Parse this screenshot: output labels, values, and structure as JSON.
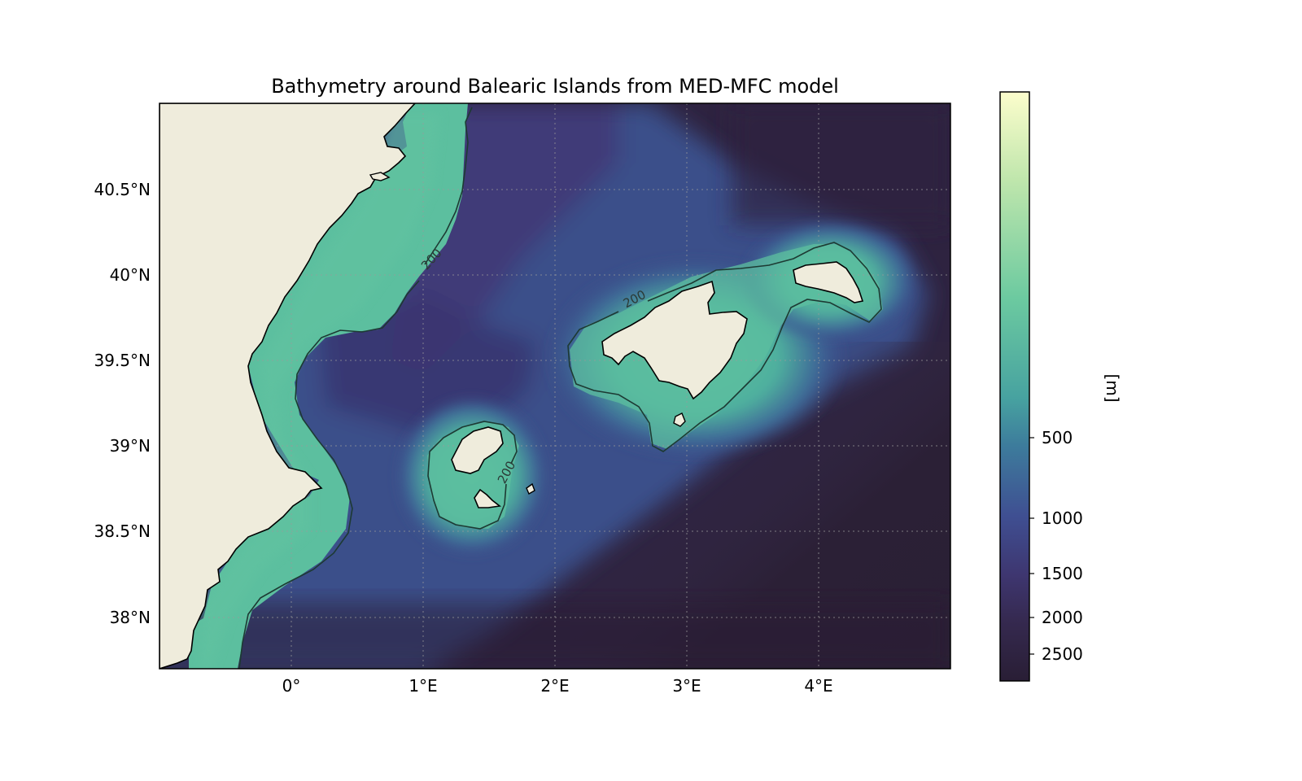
{
  "title": "Bathymetry around Balearic Islands from MED-MFC model",
  "map": {
    "extent": {
      "lon_min": -1.0,
      "lon_max": 5.0,
      "lat_min": 37.7,
      "lat_max": 41.0
    },
    "gridlines": true,
    "x_ticks": [
      {
        "lon": 0,
        "label": "0°"
      },
      {
        "lon": 1,
        "label": "1°E"
      },
      {
        "lon": 2,
        "label": "2°E"
      },
      {
        "lon": 3,
        "label": "3°E"
      },
      {
        "lon": 4,
        "label": "4°E"
      }
    ],
    "y_ticks": [
      {
        "lat": 38.0,
        "label": "38°N"
      },
      {
        "lat": 38.5,
        "label": "38.5°N"
      },
      {
        "lat": 39.0,
        "label": "39°N"
      },
      {
        "lat": 39.5,
        "label": "39.5°N"
      },
      {
        "lat": 40.0,
        "label": "40°N"
      },
      {
        "lat": 40.5,
        "label": "40.5°N"
      }
    ],
    "contour_level": 200,
    "contour_labels": [
      "200",
      "200",
      "200"
    ],
    "colors": {
      "land": "#efecdc",
      "coastline": "#000000",
      "contour": "#1d3a33",
      "shelf": "#5cbf9f",
      "slope": "#3a4f8a",
      "deep": "#352a48",
      "abyss": "#2a1f34"
    }
  },
  "colorbar": {
    "label": "[m]",
    "colormap": "deep",
    "ticks": [
      {
        "value": 500,
        "label": "500"
      },
      {
        "value": 1000,
        "label": "1000"
      },
      {
        "value": 1500,
        "label": "1500"
      },
      {
        "value": 2000,
        "label": "2000"
      },
      {
        "value": 2500,
        "label": "2500"
      }
    ]
  }
}
